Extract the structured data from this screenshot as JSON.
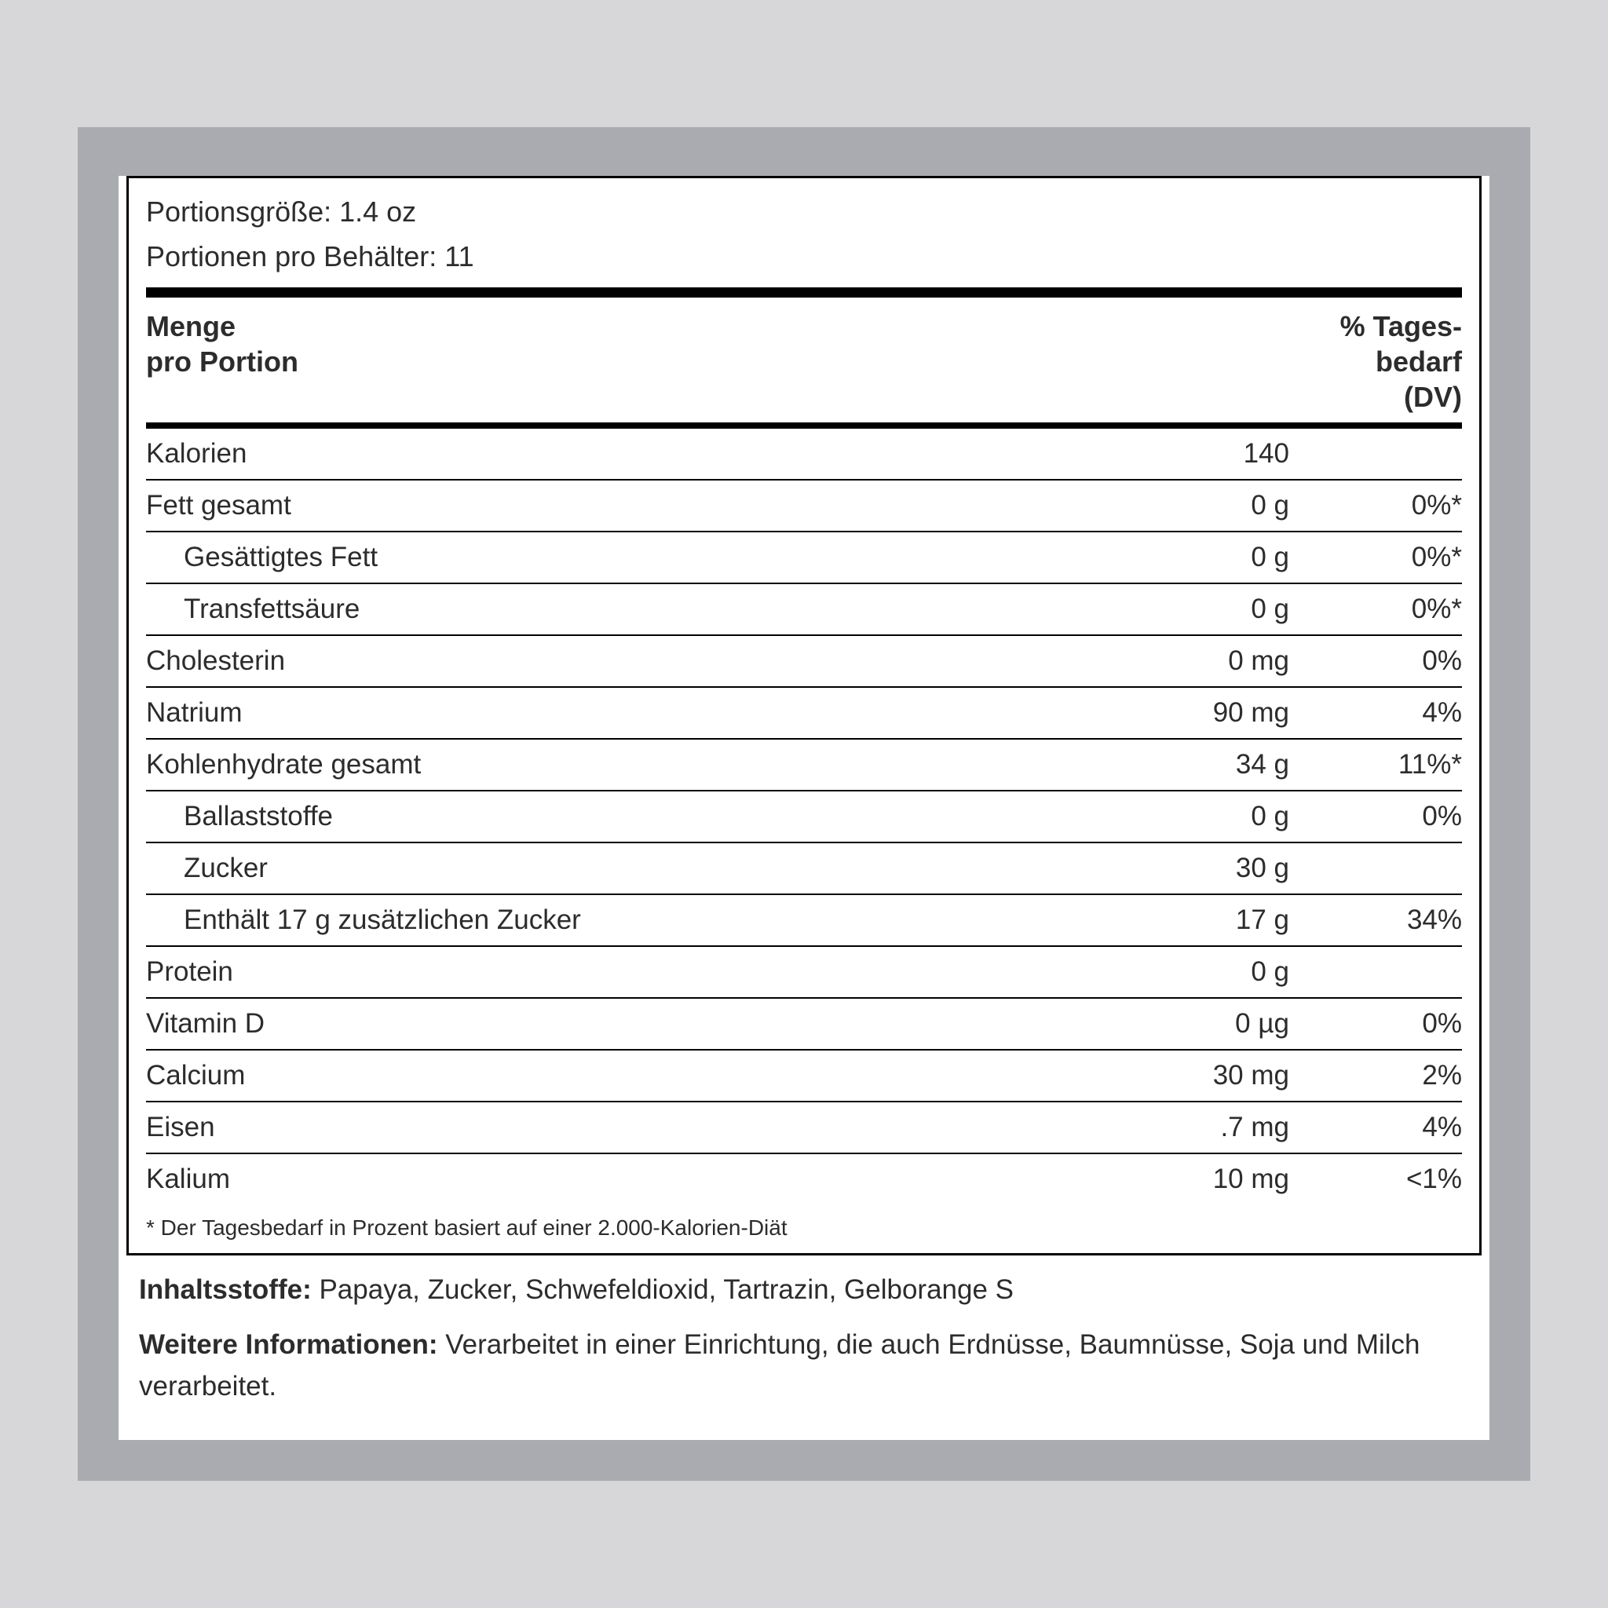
{
  "colors": {
    "page_bg": "#d7d7d9",
    "frame_bg": "#a9abb0",
    "panel_bg": "#ffffff",
    "rule": "#000000",
    "text": "#2c2c2c"
  },
  "serving": {
    "size_label": "Portionsgröße: 1.4 oz",
    "per_container_label": "Portionen pro Behälter: 11"
  },
  "headers": {
    "amount_line1": "Menge",
    "amount_line2": "pro Portion",
    "dv_line1": "% Tages-",
    "dv_line2": "bedarf",
    "dv_line3": "(DV)"
  },
  "rows": [
    {
      "label": "Kalorien",
      "amount": "140",
      "dv": "",
      "indent": false
    },
    {
      "label": "Fett gesamt",
      "amount": "0 g",
      "dv": "0%*",
      "indent": false
    },
    {
      "label": "Gesättigtes Fett",
      "amount": "0 g",
      "dv": "0%*",
      "indent": true
    },
    {
      "label": "Transfettsäure",
      "amount": "0 g",
      "dv": "0%*",
      "indent": true
    },
    {
      "label": "Cholesterin",
      "amount": "0 mg",
      "dv": "0%",
      "indent": false
    },
    {
      "label": "Natrium",
      "amount": "90 mg",
      "dv": "4%",
      "indent": false
    },
    {
      "label": "Kohlenhydrate gesamt",
      "amount": "34 g",
      "dv": "11%*",
      "indent": false
    },
    {
      "label": "Ballaststoffe",
      "amount": "0 g",
      "dv": "0%",
      "indent": true
    },
    {
      "label": "Zucker",
      "amount": "30 g",
      "dv": "",
      "indent": true
    },
    {
      "label": "Enthält 17 g zusätzlichen Zucker",
      "amount": "17 g",
      "dv": "34%",
      "indent": true
    },
    {
      "label": "Protein",
      "amount": "0 g",
      "dv": "",
      "indent": false
    },
    {
      "label": "Vitamin D",
      "amount": "0 µg",
      "dv": "0%",
      "indent": false
    },
    {
      "label": "Calcium",
      "amount": "30 mg",
      "dv": "2%",
      "indent": false
    },
    {
      "label": "Eisen",
      "amount": ".7 mg",
      "dv": "4%",
      "indent": false
    },
    {
      "label": "Kalium",
      "amount": "10 mg",
      "dv": "<1%",
      "indent": false
    }
  ],
  "footnote": "* Der Tagesbedarf in Prozent basiert auf einer 2.000-Kalorien-Diät",
  "ingredients": {
    "label": "Inhaltsstoffe: ",
    "text": "Papaya, Zucker, Schwefeldioxid, Tartrazin, Gelborange S"
  },
  "more_info": {
    "label": "Weitere Informationen: ",
    "text": "Verarbeitet in einer Einrichtung, die auch Erdnüsse, Baumnüsse, Soja und Milch verarbeitet."
  }
}
